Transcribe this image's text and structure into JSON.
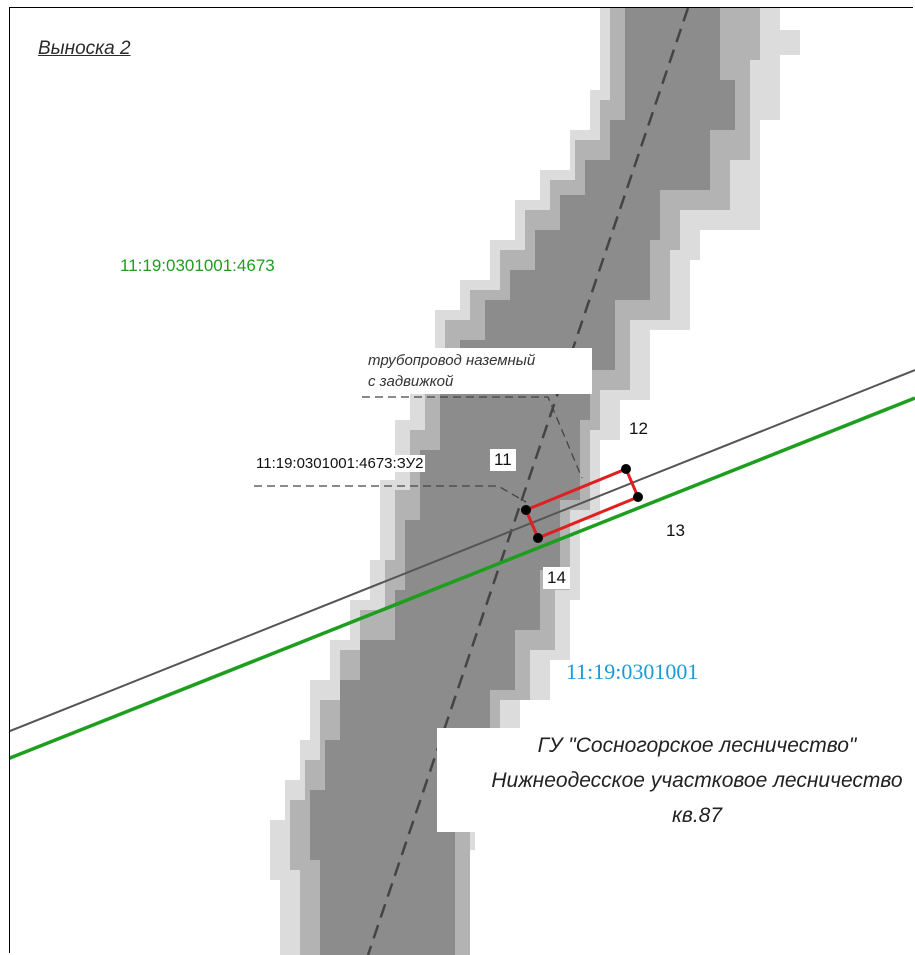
{
  "callout_title": "Выноска 2",
  "parcel_green_label": "11:19:0301001:4673",
  "pipeline_label": {
    "line1": "трубопровод наземный",
    "line2": "с задвижкой"
  },
  "zu_label": "11:19:0301001:4673:ЗУ2",
  "points": {
    "p11": "11",
    "p12": "12",
    "p13": "13",
    "p14": "14"
  },
  "quarter_label": "11:19:0301001",
  "forest": {
    "line1": "ГУ \"Сосногорское лесничество\"",
    "line2": "Нижнеодесское участковое лесничество",
    "line3": "кв.87"
  },
  "colors": {
    "forest_dark": "#8c8c8c",
    "forest_mid": "#b3b3b3",
    "forest_light": "#dcdcdc",
    "parcel_boundary": "#1e9e1e",
    "road_line": "#555555",
    "quarter_label": "#1a9ad6",
    "zu_outline": "#e02020"
  }
}
